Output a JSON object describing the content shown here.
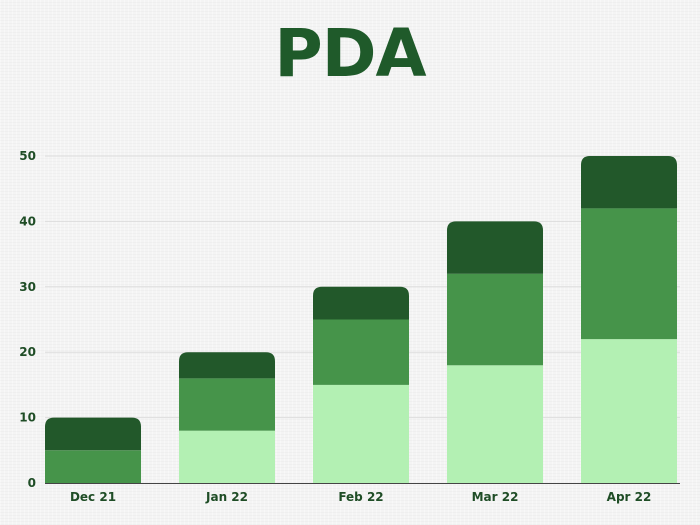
{
  "colors": {
    "background": "#f4f4f4",
    "title": "#1f5a2a",
    "text": "#1f4d26",
    "grid": "#dddddd",
    "axis": "#444444",
    "bottom_segment": "#b3f0b3",
    "middle_segment": "#46944a",
    "top_segment": "#22582a"
  },
  "chart_data": {
    "type": "bar",
    "stacked": true,
    "title": "PDA",
    "categories": [
      "Dec 21",
      "Jan 22",
      "Feb 22",
      "Mar 22",
      "Apr 22"
    ],
    "series": [
      {
        "values": [
          0,
          8,
          15,
          18,
          22
        ],
        "color": "#b3f0b3"
      },
      {
        "values": [
          5,
          8,
          10,
          14,
          20
        ],
        "color": "#46944a"
      },
      {
        "values": [
          5,
          4,
          5,
          8,
          8
        ],
        "color": "#22582a"
      }
    ],
    "yticks": [
      "0",
      "10",
      "20",
      "30",
      "40",
      "50"
    ],
    "ylim": [
      0,
      50
    ],
    "xlabel": "",
    "ylabel": "",
    "grid": true,
    "legend": "none"
  }
}
